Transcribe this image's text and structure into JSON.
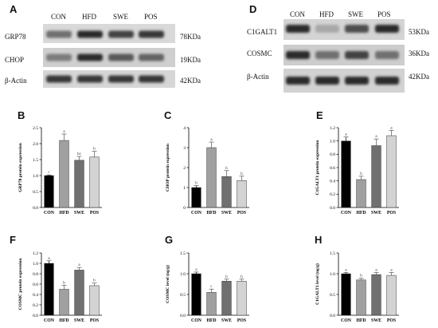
{
  "panels": {
    "A": {
      "letter": "A",
      "lanes": [
        "CON",
        "HFD",
        "SWE",
        "POS"
      ],
      "rows": [
        {
          "label": "GRP78",
          "kda": "78KDa",
          "intensities": [
            0.55,
            0.85,
            0.75,
            0.8
          ]
        },
        {
          "label": "CHOP",
          "kda": "19KDa",
          "intensities": [
            0.5,
            0.85,
            0.65,
            0.6
          ]
        },
        {
          "label": "β-Actin",
          "kda": "42KDa",
          "intensities": [
            0.8,
            0.8,
            0.8,
            0.8
          ]
        }
      ]
    },
    "D": {
      "letter": "D",
      "lanes": [
        "CON",
        "HFD",
        "SWE",
        "POS"
      ],
      "rows": [
        {
          "label": "C1GALT1",
          "kda": "53KDa",
          "intensities": [
            0.85,
            0.3,
            0.7,
            0.85
          ]
        },
        {
          "label": "COSMC",
          "kda": "36KDa",
          "intensities": [
            0.85,
            0.55,
            0.75,
            0.55
          ]
        },
        {
          "label": "β-Actin",
          "kda": "42KDa",
          "intensities": [
            0.85,
            0.85,
            0.85,
            0.85
          ]
        }
      ]
    }
  },
  "chart_colors": [
    "#000000",
    "#a0a0a0",
    "#707070",
    "#d3d3d3"
  ],
  "chart_data": [
    {
      "id": "B",
      "letter": "B",
      "type": "bar",
      "categories": [
        "CON",
        "HFD",
        "SWE",
        "POS"
      ],
      "values": [
        1.0,
        2.1,
        1.48,
        1.58
      ],
      "errors": [
        0.02,
        0.2,
        0.12,
        0.18
      ],
      "labels": [
        "c",
        "a",
        "bc",
        "b"
      ],
      "ylabel": "GRP78 protein expression",
      "ylim": [
        0,
        2.5
      ],
      "yticks": [
        0.0,
        0.5,
        1.0,
        1.5,
        2.0,
        2.5
      ],
      "ytick_labels": [
        "0.0",
        "0.5",
        "1.0",
        "1.5",
        "2.0",
        "2.5"
      ]
    },
    {
      "id": "C",
      "letter": "C",
      "type": "bar",
      "categories": [
        "CON",
        "HFD",
        "SWE",
        "POS"
      ],
      "values": [
        1.0,
        3.0,
        1.55,
        1.35
      ],
      "errors": [
        0.1,
        0.28,
        0.3,
        0.22
      ],
      "labels": [
        "b",
        "a",
        "b",
        "b"
      ],
      "ylabel": "CHOP protein expression",
      "ylim": [
        0,
        4
      ],
      "yticks": [
        0,
        1,
        2,
        3,
        4
      ],
      "ytick_labels": [
        "0",
        "1",
        "2",
        "3",
        "4"
      ]
    },
    {
      "id": "E",
      "letter": "E",
      "type": "bar",
      "categories": [
        "CON",
        "HFD",
        "SWE",
        "POS"
      ],
      "values": [
        1.0,
        0.42,
        0.93,
        1.08
      ],
      "errors": [
        0.06,
        0.05,
        0.1,
        0.08
      ],
      "labels": [
        "a",
        "b",
        "a",
        "a"
      ],
      "ylabel": "C1GALT1 protein expression",
      "ylim": [
        0,
        1.2
      ],
      "yticks": [
        0.0,
        0.2,
        0.4,
        0.6,
        0.8,
        1.0,
        1.2
      ],
      "ytick_labels": [
        "0.0",
        "0.2",
        "0.4",
        "0.6",
        "0.8",
        "1.0",
        "1.2"
      ]
    },
    {
      "id": "F",
      "letter": "F",
      "type": "bar",
      "categories": [
        "CON",
        "HFD",
        "SWE",
        "POS"
      ],
      "values": [
        1.0,
        0.5,
        0.87,
        0.57
      ],
      "errors": [
        0.05,
        0.08,
        0.05,
        0.05
      ],
      "labels": [
        "a",
        "b",
        "a",
        "b"
      ],
      "ylabel": "COSMC protein expression",
      "ylim": [
        0,
        1.2
      ],
      "yticks": [
        0.0,
        0.2,
        0.4,
        0.6,
        0.8,
        1.0,
        1.2
      ],
      "ytick_labels": [
        "0.0",
        "0.2",
        "0.4",
        "0.6",
        "0.8",
        "1.0",
        "1.2"
      ]
    },
    {
      "id": "G",
      "letter": "G",
      "type": "bar",
      "categories": [
        "CON",
        "HFD",
        "SWE",
        "POS"
      ],
      "values": [
        1.0,
        0.55,
        0.82,
        0.82
      ],
      "errors": [
        0.04,
        0.08,
        0.05,
        0.05
      ],
      "labels": [
        "a",
        "c",
        "b",
        "b"
      ],
      "ylabel": "COSMC level (ng/g)",
      "ylim": [
        0,
        1.5
      ],
      "yticks": [
        0.0,
        0.5,
        1.0,
        1.5
      ],
      "ytick_labels": [
        "0.0",
        "0.5",
        "1.0",
        "1.5"
      ]
    },
    {
      "id": "H",
      "letter": "H",
      "type": "bar",
      "categories": [
        "CON",
        "HFD",
        "SWE",
        "POS"
      ],
      "values": [
        1.0,
        0.85,
        0.98,
        0.96
      ],
      "errors": [
        0.03,
        0.04,
        0.05,
        0.07
      ],
      "labels": [
        "a",
        "b",
        "a",
        "a"
      ],
      "ylabel": "C1GALT1 level (ng/g)",
      "ylim": [
        0,
        1.5
      ],
      "yticks": [
        0.0,
        0.5,
        1.0,
        1.5
      ],
      "ytick_labels": [
        "0.0",
        "0.5",
        "1.0",
        "1.5"
      ]
    }
  ]
}
